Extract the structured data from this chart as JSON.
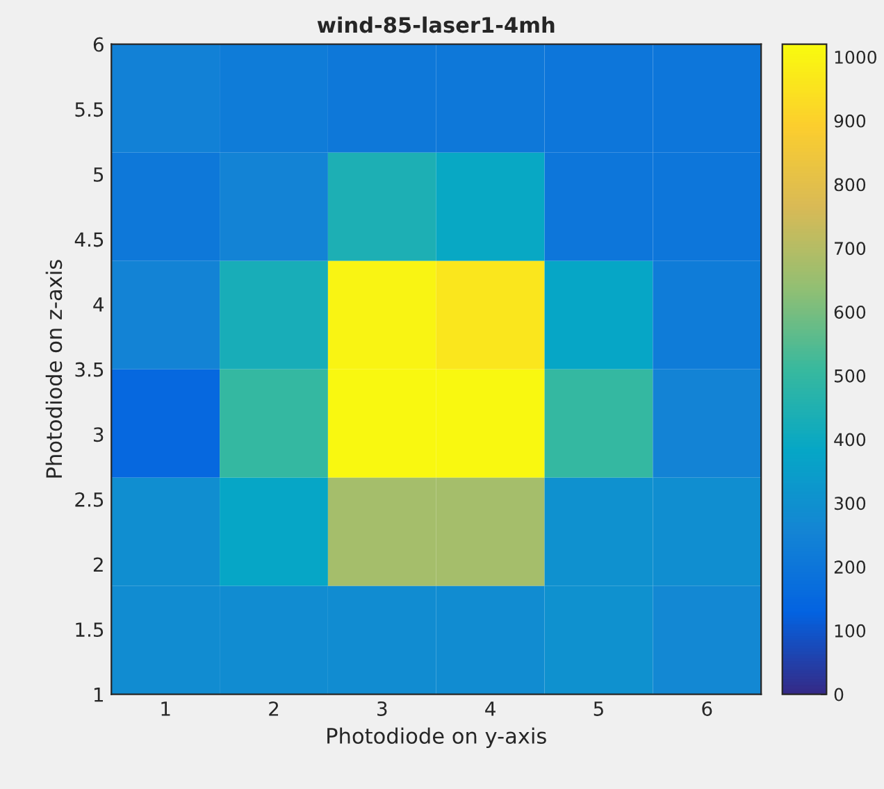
{
  "chart_data": {
    "type": "heatmap",
    "title": "wind-85-laser1-4mh",
    "xlabel": "Photodiode on y-axis",
    "ylabel": "Photodiode on z-axis",
    "x": [
      1,
      2,
      3,
      4,
      5,
      6
    ],
    "xlim": [
      0.5,
      6.5
    ],
    "xticks": [
      1,
      2,
      3,
      4,
      5,
      6
    ],
    "ylim": [
      1,
      6
    ],
    "yticks": [
      1,
      1.5,
      2,
      2.5,
      3,
      3.5,
      4,
      4.5,
      5,
      5.5,
      6
    ],
    "cells": [
      [
        240,
        220,
        210,
        210,
        200,
        200
      ],
      [
        210,
        250,
        440,
        390,
        200,
        200
      ],
      [
        250,
        430,
        1000,
        960,
        380,
        220
      ],
      [
        150,
        500,
        1010,
        1010,
        500,
        250
      ],
      [
        290,
        380,
        670,
        670,
        300,
        290
      ],
      [
        280,
        280,
        280,
        280,
        300,
        270
      ]
    ],
    "clim": [
      0,
      1020
    ],
    "cticks": [
      0,
      100,
      200,
      300,
      400,
      500,
      600,
      700,
      800,
      900,
      1000
    ]
  }
}
